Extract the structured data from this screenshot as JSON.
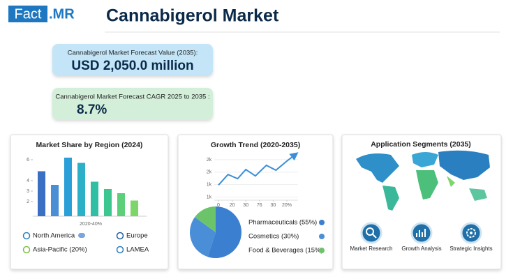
{
  "header": {
    "logo_left": "Fact",
    "logo_right": ".MR",
    "title": "Cannabigerol Market"
  },
  "kpis": [
    {
      "label": "Cannabigerol Market Forecast Value (2035):",
      "value": "USD 2,050.0 million",
      "color": "#c3e5f7"
    },
    {
      "label": "Cannabigerol Market Forecast CAGR 2025 to 2035 :",
      "value": "8.7%",
      "color": "#d3efd9"
    }
  ],
  "chart_data": [
    {
      "type": "bar",
      "title": "Market Share by Region (2024)",
      "x_label": "2020-40%",
      "categories": [
        null,
        null,
        null,
        null,
        null,
        null,
        null,
        null
      ],
      "values": [
        4.9,
        3.6,
        6.2,
        5.7,
        3.9,
        3.2,
        2.8,
        2.1
      ],
      "colors": [
        "#3a6fc4",
        "#4a8fd6",
        "#2a9fd8",
        "#2bb0c8",
        "#2fbfa5",
        "#3cc690",
        "#5ccf7a",
        "#7dd66a"
      ],
      "ylim": [
        0.6,
        6.4
      ],
      "yticks": [
        2,
        3,
        4,
        6
      ],
      "legend_items": [
        "North America",
        "Europe",
        "Asia-Pacific (20%)",
        "LAMEA"
      ]
    },
    {
      "type": "line",
      "title": "Growth Trend (2020-2035)",
      "color": "#3a8fd8",
      "x": [
        0,
        0.7,
        1.4,
        2.0,
        2.7,
        3.5,
        4.2,
        5.0,
        5.6
      ],
      "values": [
        1386,
        1725,
        1590,
        1884,
        1680,
        2020,
        1861,
        2155,
        2358
      ],
      "xlim": [
        -0.3,
        5.8
      ],
      "xticks": [
        {
          "value": 0,
          "label": "0"
        },
        {
          "value": 1,
          "label": "20"
        },
        {
          "value": 2,
          "label": "30"
        },
        {
          "value": 3,
          "label": "76"
        },
        {
          "value": 4,
          "label": "30"
        },
        {
          "value": 5,
          "label": "20%"
        }
      ],
      "ylim": [
        900,
        2400
      ],
      "yticks": [
        {
          "value": 2200,
          "label": "2k"
        },
        {
          "value": 1800,
          "label": "2k"
        },
        {
          "value": 1400,
          "label": "1k"
        },
        {
          "value": 1000,
          "label": "1k"
        }
      ],
      "grid": true
    },
    {
      "type": "pie",
      "categories": [
        "Pharmaceuticals (55%)",
        "Cosmetics (30%)",
        "Food & Beverages (15%)"
      ],
      "values": [
        55,
        30,
        15
      ],
      "colors": [
        "#3b7fd0",
        "#4a8ed8",
        "#6cc46a"
      ]
    }
  ],
  "segments": {
    "title": "Application Segments (2035)",
    "items": [
      "Market Research",
      "Growth Analysis",
      "Strategic Insights"
    ]
  }
}
